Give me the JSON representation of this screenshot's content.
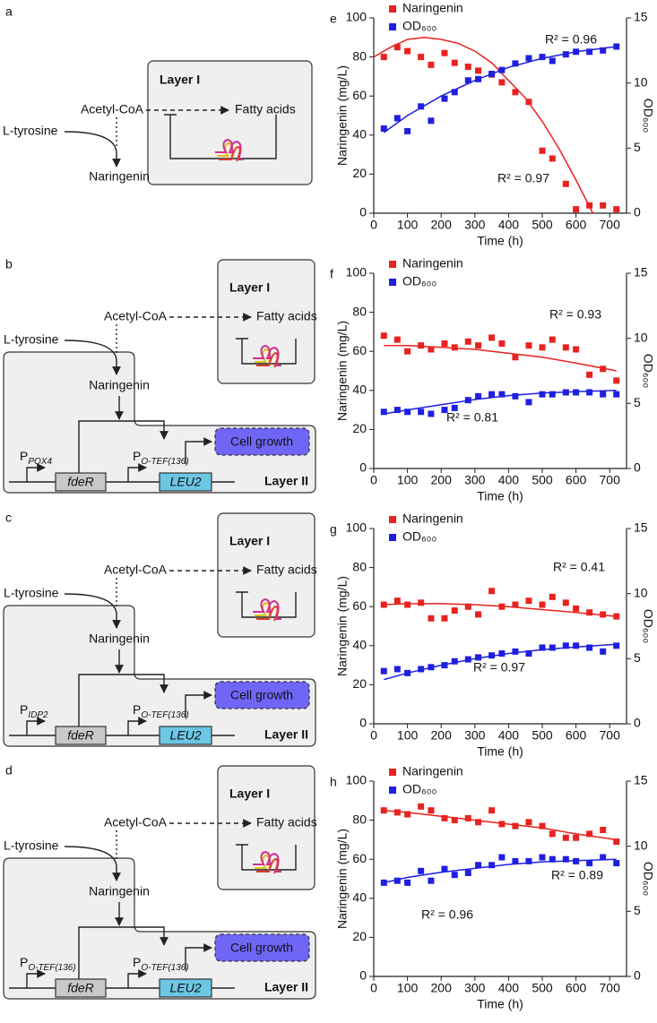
{
  "diagrams": [
    {
      "label": "a",
      "layer_1": "Layer I",
      "acetyl_coa": "Acetyl-CoA",
      "fatty_acids": "Fatty acids",
      "l_tyrosine": "L-tyrosine",
      "naringenin": "Naringenin"
    },
    {
      "label": "b",
      "layer_1": "Layer I",
      "acetyl_coa": "Acetyl-CoA",
      "fatty_acids": "Fatty acids",
      "l_tyrosine": "L-tyrosine",
      "naringenin": "Naringenin",
      "layer_2": "Layer II",
      "cell_growth": "Cell growth",
      "genes": [
        "fdeR",
        "LEU2"
      ],
      "promoters": [
        {
          "main": "P",
          "sub": "POX4"
        },
        {
          "main": "P",
          "sub": "O-TEF(136)"
        }
      ]
    },
    {
      "label": "c",
      "layer_1": "Layer I",
      "acetyl_coa": "Acetyl-CoA",
      "fatty_acids": "Fatty acids",
      "l_tyrosine": "L-tyrosine",
      "naringenin": "Naringenin",
      "layer_2": "Layer II",
      "cell_growth": "Cell growth",
      "genes": [
        "fdeR",
        "LEU2"
      ],
      "promoters": [
        {
          "main": "P",
          "sub": "IDP2"
        },
        {
          "main": "P",
          "sub": "O-TEF(136)"
        }
      ]
    },
    {
      "label": "d",
      "layer_1": "Layer I",
      "acetyl_coa": "Acetyl-CoA",
      "fatty_acids": "Fatty acids",
      "l_tyrosine": "L-tyrosine",
      "naringenin": "Naringenin",
      "layer_2": "Layer II",
      "cell_growth": "Cell growth",
      "genes": [
        "fdeR",
        "LEU2"
      ],
      "promoters": [
        {
          "main": "P",
          "sub": "O-TEF(136)"
        },
        {
          "main": "P",
          "sub": "O-TEF(136)"
        }
      ]
    }
  ],
  "chart_data": [
    {
      "type": "scatter",
      "label": "e",
      "xlabel": "Time (h)",
      "ylabel": "Naringenin (mg/L)",
      "y2label": "OD₆₀₀",
      "x": [
        30,
        70,
        100,
        140,
        170,
        210,
        240,
        280,
        310,
        350,
        380,
        420,
        460,
        500,
        530,
        570,
        600,
        640,
        680,
        720
      ],
      "xlim": [
        0,
        750
      ],
      "xticks": [
        0,
        100,
        200,
        300,
        400,
        500,
        600,
        700
      ],
      "ylim": [
        0,
        100
      ],
      "yticks": [
        0,
        20,
        40,
        60,
        80,
        100
      ],
      "y2lim": [
        0,
        15
      ],
      "y2ticks": [
        0,
        5,
        10,
        15
      ],
      "legend": "upper left",
      "series": [
        {
          "name": "Naringenin",
          "color": "#e8221f",
          "values": [
            80,
            85,
            83,
            80,
            76,
            82,
            77,
            75,
            73,
            71,
            67,
            62,
            57,
            32,
            28,
            15,
            2,
            4,
            4,
            2
          ],
          "fit": {
            "x": [
              0,
              50,
              100,
              150,
              200,
              250,
              300,
              350,
              400,
              450,
              500,
              550,
              600,
              650
            ],
            "values": [
              80,
              85,
              89,
              90,
              89,
              87,
              83,
              77,
              68,
              59,
              47,
              33,
              17,
              0
            ]
          },
          "fit_label": "R² = 0.97"
        },
        {
          "name": "OD₆₀₀",
          "color": "#1f1fe0",
          "axis": "y2",
          "values": [
            6.5,
            7.3,
            6.3,
            8.2,
            7.1,
            8.8,
            9.3,
            10.2,
            10.3,
            10.7,
            11.0,
            11.5,
            11.9,
            12.0,
            11.7,
            12.2,
            12.4,
            12.4,
            12.5,
            12.8
          ],
          "fit": {
            "x": [
              30,
              100,
              200,
              300,
              400,
              500,
              600,
              720
            ],
            "values": [
              6.2,
              7.5,
              9.0,
              10.2,
              11.2,
              11.9,
              12.4,
              12.8
            ]
          },
          "fit_label": "R² = 0.96"
        }
      ]
    },
    {
      "type": "scatter",
      "label": "f",
      "xlabel": "Time (h)",
      "ylabel": "Naringenin (mg/L)",
      "y2label": "OD₆₀₀",
      "x": [
        30,
        70,
        100,
        140,
        170,
        210,
        240,
        280,
        310,
        350,
        380,
        420,
        460,
        500,
        530,
        570,
        600,
        640,
        680,
        720
      ],
      "xlim": [
        0,
        750
      ],
      "xticks": [
        0,
        100,
        200,
        300,
        400,
        500,
        600,
        700
      ],
      "ylim": [
        0,
        100
      ],
      "yticks": [
        0,
        20,
        40,
        60,
        80,
        100
      ],
      "y2lim": [
        0,
        15
      ],
      "y2ticks": [
        0,
        5,
        10,
        15
      ],
      "legend": "upper left",
      "series": [
        {
          "name": "Naringenin",
          "color": "#e8221f",
          "values": [
            68,
            66,
            60,
            63,
            61,
            64,
            62,
            65,
            63,
            67,
            64,
            57,
            63,
            62,
            66,
            62,
            61,
            48,
            51,
            45
          ],
          "fit": {
            "x": [
              30,
              100,
              200,
              300,
              400,
              500,
              600,
              720
            ],
            "values": [
              63,
              63,
              62,
              61,
              59,
              57,
              54,
              50
            ]
          },
          "fit_label": "R² = 0.93"
        },
        {
          "name": "OD₆₀₀",
          "color": "#1f1fe0",
          "axis": "y2",
          "values": [
            4.35,
            4.5,
            4.35,
            4.35,
            4.2,
            4.5,
            4.65,
            5.25,
            5.55,
            5.7,
            5.7,
            5.55,
            5.1,
            5.7,
            5.7,
            5.85,
            5.85,
            5.85,
            5.7,
            5.7
          ],
          "fit": {
            "x": [
              30,
              100,
              200,
              300,
              400,
              500,
              600,
              720
            ],
            "values": [
              4.2,
              4.5,
              4.9,
              5.3,
              5.6,
              5.8,
              5.9,
              6.0
            ]
          },
          "fit_label": "R² = 0.81"
        }
      ]
    },
    {
      "type": "scatter",
      "label": "g",
      "xlabel": "Time (h)",
      "ylabel": "Naringenin (mg/L)",
      "y2label": "OD₆₀₀",
      "x": [
        30,
        70,
        100,
        140,
        170,
        210,
        240,
        280,
        310,
        350,
        380,
        420,
        460,
        500,
        530,
        570,
        600,
        640,
        680,
        720
      ],
      "xlim": [
        0,
        750
      ],
      "xticks": [
        0,
        100,
        200,
        300,
        400,
        500,
        600,
        700
      ],
      "ylim": [
        0,
        100
      ],
      "yticks": [
        0,
        20,
        40,
        60,
        80,
        100
      ],
      "y2lim": [
        0,
        15
      ],
      "y2ticks": [
        0,
        5,
        10,
        15
      ],
      "legend": "upper left",
      "series": [
        {
          "name": "Naringenin",
          "color": "#e8221f",
          "values": [
            61,
            63,
            61,
            62,
            54,
            54,
            58,
            60,
            56,
            68,
            60,
            61,
            63,
            61,
            65,
            62,
            59,
            57,
            56,
            55
          ],
          "fit": {
            "x": [
              30,
              100,
              200,
              300,
              400,
              500,
              600,
              720
            ],
            "values": [
              61,
              61.5,
              61.5,
              61,
              60,
              58.5,
              57,
              55
            ]
          },
          "fit_label": "R² = 0.41"
        },
        {
          "name": "OD₆₀₀",
          "color": "#1f1fe0",
          "axis": "y2",
          "values": [
            4.05,
            4.2,
            3.9,
            4.2,
            4.35,
            4.5,
            4.8,
            4.95,
            5.1,
            5.25,
            5.4,
            5.55,
            5.4,
            5.85,
            5.85,
            6,
            6,
            5.85,
            5.55,
            6
          ],
          "fit": {
            "x": [
              30,
              100,
              200,
              300,
              400,
              500,
              600,
              720
            ],
            "values": [
              3.4,
              3.9,
              4.5,
              5.0,
              5.4,
              5.7,
              5.9,
              6.1
            ]
          },
          "fit_label": "R² = 0.97"
        }
      ]
    },
    {
      "type": "scatter",
      "label": "h",
      "xlabel": "Time (h)",
      "ylabel": "Naringenin (mg/L)",
      "y2label": "OD₆₀₀",
      "x": [
        30,
        70,
        100,
        140,
        170,
        210,
        240,
        280,
        310,
        350,
        380,
        420,
        460,
        500,
        530,
        570,
        600,
        640,
        680,
        720
      ],
      "xlim": [
        0,
        750
      ],
      "xticks": [
        0,
        100,
        200,
        300,
        400,
        500,
        600,
        700
      ],
      "ylim": [
        0,
        100
      ],
      "yticks": [
        0,
        20,
        40,
        60,
        80,
        100
      ],
      "y2lim": [
        0,
        15
      ],
      "y2ticks": [
        0,
        5,
        10,
        15
      ],
      "legend": "upper left",
      "series": [
        {
          "name": "Naringenin",
          "color": "#e8221f",
          "values": [
            85,
            84,
            83,
            87,
            85,
            81,
            80,
            81,
            79,
            85,
            78,
            77,
            79,
            77,
            73,
            71,
            71,
            73,
            75,
            69
          ],
          "fit": {
            "x": [
              30,
              100,
              200,
              300,
              400,
              500,
              600,
              720
            ],
            "values": [
              85,
              84,
              82,
              80,
              78,
              76,
              73,
              70
            ]
          },
          "fit_label": "R² = 0.89"
        },
        {
          "name": "OD₆₀₀",
          "color": "#1f1fe0",
          "axis": "y2",
          "values": [
            7.2,
            7.35,
            7.2,
            8.1,
            7.35,
            8.25,
            7.8,
            7.95,
            8.55,
            8.55,
            9.15,
            8.85,
            8.85,
            9.15,
            9.0,
            9.0,
            8.85,
            8.7,
            9.15,
            8.7
          ],
          "fit": {
            "x": [
              30,
              100,
              200,
              300,
              400,
              500,
              600,
              720
            ],
            "values": [
              7.2,
              7.6,
              8.0,
              8.3,
              8.6,
              8.8,
              8.9,
              9.0
            ]
          },
          "fit_label": "R² = 0.96"
        }
      ]
    }
  ]
}
